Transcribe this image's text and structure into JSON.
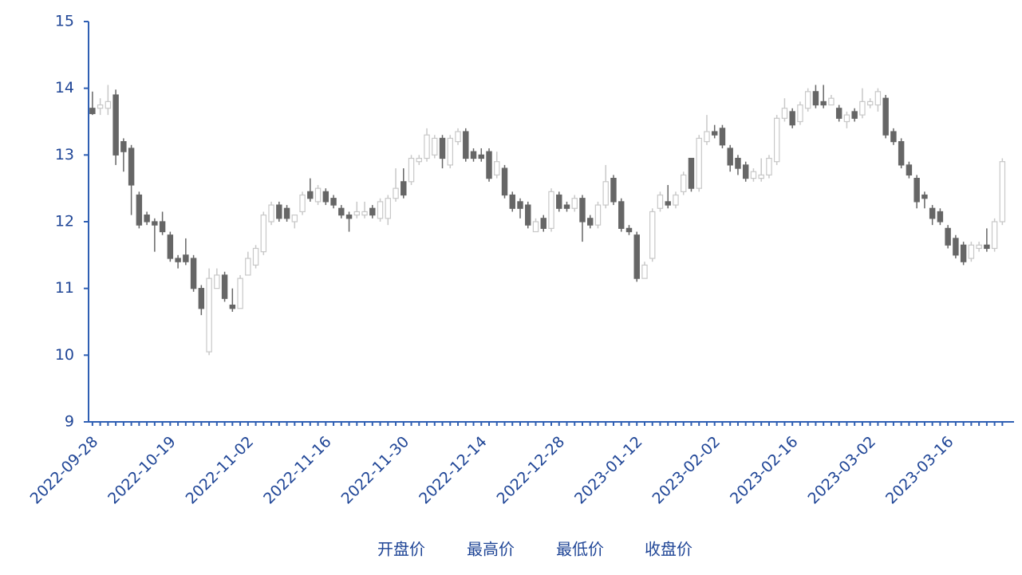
{
  "chart_data": {
    "type": "candlestick",
    "categories": [
      "2022-09-28",
      null,
      null,
      null,
      null,
      null,
      null,
      null,
      null,
      null,
      "2022-10-19",
      null,
      null,
      null,
      null,
      null,
      null,
      null,
      null,
      null,
      "2022-11-02",
      null,
      null,
      null,
      null,
      null,
      null,
      null,
      null,
      null,
      "2022-11-16",
      null,
      null,
      null,
      null,
      null,
      null,
      null,
      null,
      null,
      "2022-11-30",
      null,
      null,
      null,
      null,
      null,
      null,
      null,
      null,
      null,
      "2022-12-14",
      null,
      null,
      null,
      null,
      null,
      null,
      null,
      null,
      null,
      "2022-12-28",
      null,
      null,
      null,
      null,
      null,
      null,
      null,
      null,
      null,
      "2023-01-12",
      null,
      null,
      null,
      null,
      null,
      null,
      null,
      null,
      null,
      "2023-02-02",
      null,
      null,
      null,
      null,
      null,
      null,
      null,
      null,
      null,
      "2023-02-16",
      null,
      null,
      null,
      null,
      null,
      null,
      null,
      null,
      null,
      "2023-03-02",
      null,
      null,
      null,
      null,
      null,
      null,
      null,
      null,
      null,
      "2023-03-16",
      null,
      null,
      null,
      null,
      null,
      null,
      null
    ],
    "series": [
      {
        "name": "开盘价",
        "values": [
          13.7,
          13.7,
          13.7,
          13.9,
          13.2,
          13.1,
          12.4,
          12.1,
          12.0,
          12.0,
          11.8,
          11.45,
          11.5,
          11.45,
          11.0,
          10.05,
          11.0,
          11.2,
          10.75,
          10.7,
          11.2,
          11.35,
          11.55,
          12.0,
          12.25,
          12.2,
          12.0,
          12.15,
          12.45,
          12.3,
          12.45,
          12.35,
          12.2,
          12.1,
          12.1,
          12.1,
          12.2,
          12.05,
          12.05,
          12.35,
          12.6,
          12.6,
          12.9,
          12.95,
          13.0,
          13.25,
          12.85,
          13.2,
          13.35,
          13.05,
          13.0,
          13.05,
          12.7,
          12.8,
          12.4,
          12.3,
          12.25,
          11.85,
          12.05,
          11.9,
          12.4,
          12.25,
          12.2,
          12.35,
          12.05,
          11.95,
          12.25,
          12.65,
          12.3,
          11.9,
          11.8,
          11.15,
          11.45,
          12.2,
          12.3,
          12.25,
          12.45,
          12.95,
          12.5,
          13.2,
          13.35,
          13.4,
          13.1,
          12.95,
          12.85,
          12.65,
          12.65,
          12.7,
          12.9,
          13.55,
          13.65,
          13.5,
          13.7,
          13.95,
          13.8,
          13.75,
          13.7,
          13.5,
          13.65,
          13.6,
          13.75,
          13.75,
          13.85,
          13.35,
          13.2,
          12.85,
          12.65,
          12.4,
          12.2,
          12.15,
          11.9,
          11.75,
          11.65,
          11.45,
          11.6,
          11.65,
          11.6,
          12.0
        ]
      },
      {
        "name": "最高价",
        "values": [
          13.95,
          13.85,
          14.05,
          13.98,
          13.25,
          13.15,
          12.45,
          12.15,
          12.05,
          12.15,
          11.85,
          11.5,
          11.75,
          11.5,
          11.05,
          11.3,
          11.3,
          11.25,
          11.0,
          11.2,
          11.55,
          11.65,
          12.15,
          12.3,
          12.3,
          12.25,
          12.1,
          12.45,
          12.65,
          12.55,
          12.5,
          12.4,
          12.25,
          12.15,
          12.3,
          12.3,
          12.25,
          12.35,
          12.4,
          12.8,
          12.8,
          13.0,
          13.0,
          13.4,
          13.3,
          13.3,
          13.3,
          13.4,
          13.4,
          13.1,
          13.1,
          13.1,
          13.05,
          12.85,
          12.45,
          12.35,
          12.3,
          12.05,
          12.1,
          12.5,
          12.45,
          12.3,
          12.4,
          12.4,
          12.1,
          12.3,
          12.85,
          12.7,
          12.35,
          11.95,
          11.85,
          11.4,
          12.2,
          12.45,
          12.55,
          12.45,
          12.75,
          12.95,
          13.3,
          13.6,
          13.45,
          13.45,
          13.15,
          13.0,
          12.9,
          12.8,
          12.95,
          13.0,
          13.6,
          13.85,
          13.7,
          13.8,
          14.0,
          14.05,
          14.05,
          13.9,
          13.75,
          13.65,
          13.7,
          14.0,
          13.85,
          14.0,
          13.9,
          13.4,
          13.25,
          12.9,
          12.7,
          12.45,
          12.25,
          12.2,
          11.95,
          11.8,
          11.7,
          11.7,
          11.7,
          11.9,
          12.05,
          12.95
        ]
      },
      {
        "name": "最低价",
        "values": [
          13.6,
          13.6,
          13.6,
          12.85,
          12.75,
          12.1,
          11.9,
          11.95,
          11.55,
          11.8,
          11.4,
          11.3,
          11.35,
          10.95,
          10.6,
          10.0,
          11.0,
          10.8,
          10.65,
          10.7,
          11.2,
          11.3,
          11.5,
          11.95,
          12.0,
          12.0,
          11.9,
          12.1,
          12.3,
          12.25,
          12.25,
          12.2,
          12.05,
          11.85,
          12.05,
          12.05,
          12.05,
          12.0,
          11.95,
          12.3,
          12.35,
          12.55,
          12.85,
          12.9,
          12.95,
          12.8,
          12.8,
          13.15,
          12.9,
          12.9,
          12.9,
          12.6,
          12.65,
          12.35,
          12.15,
          12.05,
          11.9,
          11.85,
          11.85,
          11.85,
          12.15,
          12.15,
          12.15,
          11.7,
          11.9,
          11.9,
          12.2,
          12.25,
          11.85,
          11.8,
          11.1,
          11.15,
          11.4,
          12.15,
          12.2,
          12.2,
          12.4,
          12.45,
          12.45,
          13.15,
          13.25,
          13.1,
          12.75,
          12.7,
          12.6,
          12.6,
          12.6,
          12.65,
          12.85,
          13.5,
          13.4,
          13.45,
          13.65,
          13.7,
          13.7,
          13.75,
          13.5,
          13.4,
          13.5,
          13.55,
          13.7,
          13.65,
          13.25,
          13.15,
          12.8,
          12.65,
          12.2,
          12.2,
          11.95,
          11.95,
          11.6,
          11.45,
          11.35,
          11.4,
          11.55,
          11.55,
          11.55,
          11.95
        ]
      },
      {
        "name": "收盘价",
        "values": [
          13.62,
          13.75,
          13.8,
          13.0,
          13.05,
          12.55,
          11.95,
          12.0,
          11.95,
          11.85,
          11.45,
          11.4,
          11.4,
          11.0,
          10.7,
          11.15,
          11.2,
          10.85,
          10.7,
          11.15,
          11.45,
          11.6,
          12.1,
          12.25,
          12.05,
          12.05,
          12.1,
          12.4,
          12.35,
          12.5,
          12.3,
          12.25,
          12.1,
          12.05,
          12.15,
          12.15,
          12.1,
          12.3,
          12.35,
          12.5,
          12.4,
          12.95,
          12.95,
          13.3,
          13.25,
          12.95,
          13.25,
          13.35,
          12.95,
          12.95,
          12.95,
          12.65,
          12.9,
          12.4,
          12.2,
          12.2,
          11.95,
          12.0,
          11.9,
          12.45,
          12.2,
          12.2,
          12.35,
          12.0,
          11.95,
          12.25,
          12.6,
          12.3,
          11.9,
          11.85,
          11.15,
          11.35,
          12.15,
          12.4,
          12.25,
          12.4,
          12.7,
          12.5,
          13.25,
          13.35,
          13.3,
          13.15,
          12.85,
          12.8,
          12.65,
          12.75,
          12.7,
          12.95,
          13.55,
          13.7,
          13.45,
          13.75,
          13.95,
          13.75,
          13.75,
          13.85,
          13.55,
          13.6,
          13.55,
          13.8,
          13.8,
          13.95,
          13.3,
          13.2,
          12.85,
          12.7,
          12.3,
          12.35,
          12.05,
          12.0,
          11.65,
          11.5,
          11.4,
          11.65,
          11.65,
          11.6,
          12.0,
          12.9
        ]
      }
    ],
    "up_color": "#ffffff",
    "up_edge": "#c8c8c8",
    "down_color": "#666666",
    "axis_color": "#2f5fb3",
    "ylim": [
      9,
      15
    ],
    "yticks": [
      9,
      10,
      11,
      12,
      13,
      14,
      15
    ]
  }
}
